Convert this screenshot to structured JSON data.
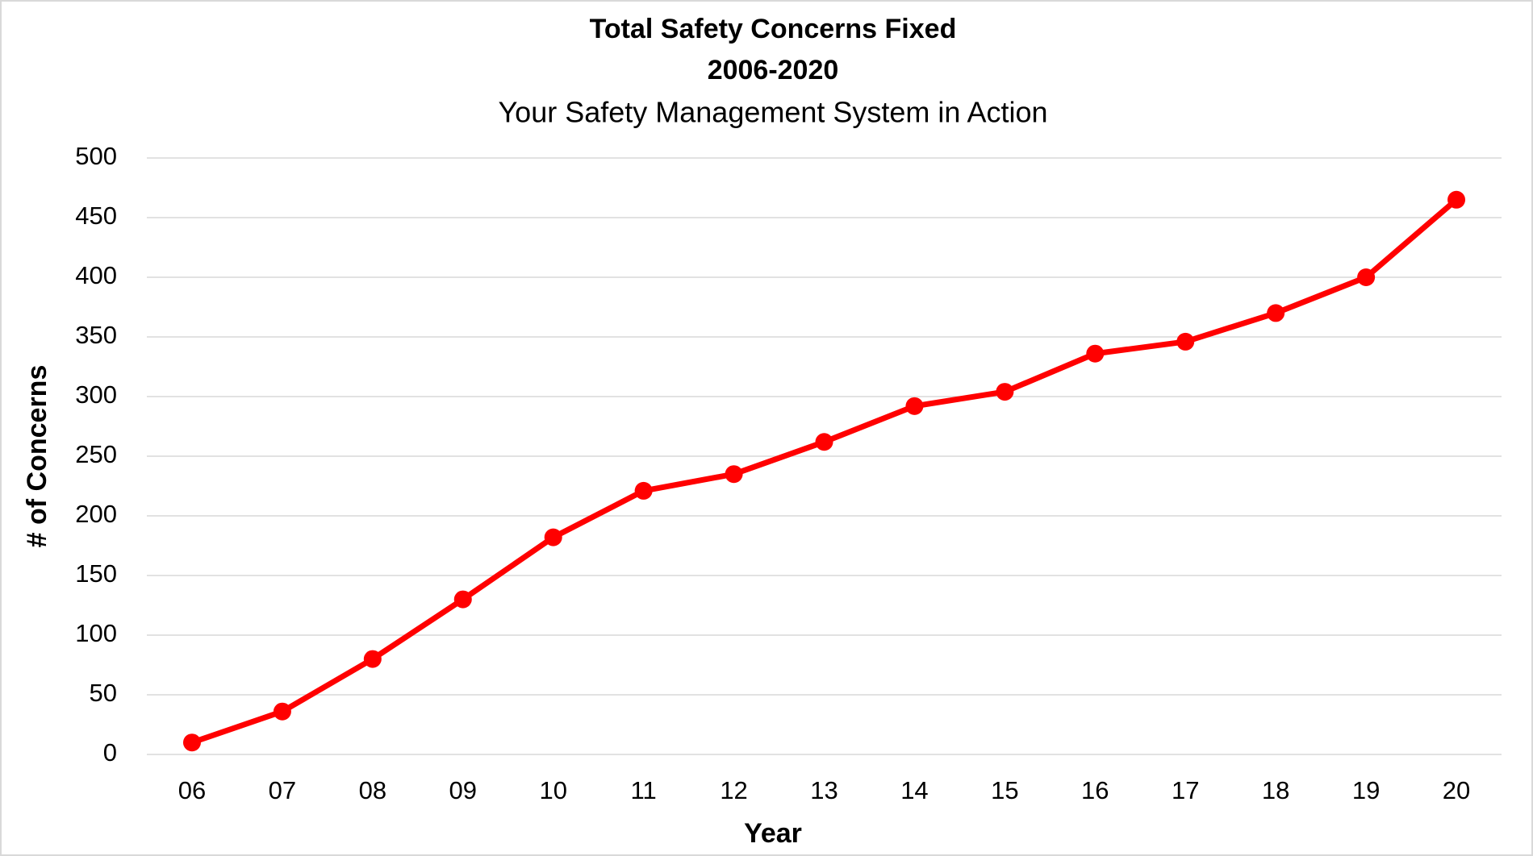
{
  "chart_data": {
    "type": "line",
    "title": [
      "Total Safety Concerns Fixed",
      "2006-2020"
    ],
    "subtitle": "Your Safety Management System in Action",
    "x_label": "Year",
    "y_label": "# of Concerns",
    "categories": [
      "06",
      "07",
      "08",
      "09",
      "10",
      "11",
      "12",
      "13",
      "14",
      "15",
      "16",
      "17",
      "18",
      "19",
      "20"
    ],
    "series": [
      {
        "color": "#ff0000",
        "values": [
          10,
          36,
          80,
          130,
          182,
          221,
          235,
          262,
          292,
          304,
          336,
          346,
          370,
          400,
          465
        ]
      }
    ],
    "ylim": [
      0,
      500
    ],
    "yticks": [
      0,
      50,
      100,
      150,
      200,
      250,
      300,
      350,
      400,
      450,
      500
    ],
    "grid": true
  }
}
